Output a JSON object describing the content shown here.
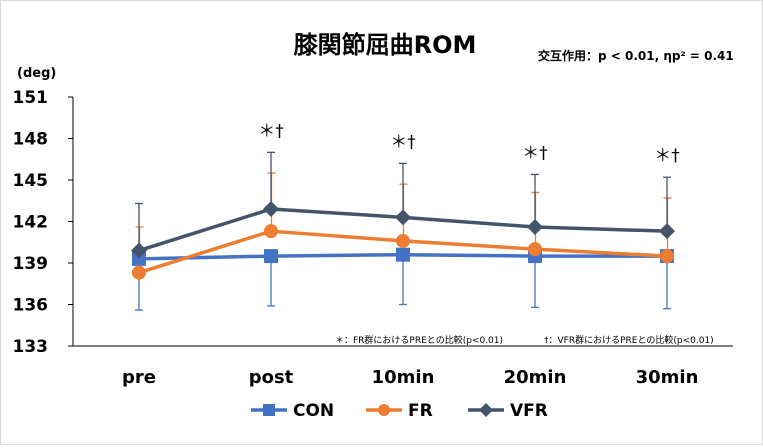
{
  "chart_data": {
    "type": "line",
    "title": "膝関節屈曲ROM",
    "annotation_interaction": "交互作用：p < 0.01, ηp² = 0.41",
    "ylabel": "(deg)",
    "ylim": [
      133,
      151
    ],
    "yticks": [
      133,
      136,
      139,
      142,
      145,
      148,
      151
    ],
    "categories": [
      "pre",
      "post",
      "10min",
      "20min",
      "30min"
    ],
    "series": [
      {
        "name": "CON",
        "color": "#4472C4",
        "marker": "square",
        "values": [
          139.3,
          139.5,
          139.6,
          139.5,
          139.5
        ],
        "err_low": [
          135.6,
          135.9,
          136.0,
          135.8,
          135.7
        ]
      },
      {
        "name": "FR",
        "color": "#ED7D31",
        "marker": "circle",
        "values": [
          138.3,
          141.3,
          140.6,
          140.0,
          139.5
        ],
        "err_high": [
          141.6,
          145.5,
          144.7,
          144.1,
          143.7
        ]
      },
      {
        "name": "VFR",
        "color": "#44546A",
        "marker": "diamond",
        "values": [
          139.9,
          142.9,
          142.3,
          141.6,
          141.3
        ],
        "err_high": [
          143.3,
          147.0,
          146.2,
          145.4,
          145.2
        ]
      }
    ],
    "significance_marks": [
      "",
      "＊†",
      "＊†",
      "＊†",
      "＊†"
    ],
    "footnote_fr": "＊：FR群におけるPREとの比較(p<0.01)",
    "footnote_vfr": "†：VFR群におけるPREとの比較(p<0.01)",
    "legend_position": "bottom",
    "grid": false
  }
}
